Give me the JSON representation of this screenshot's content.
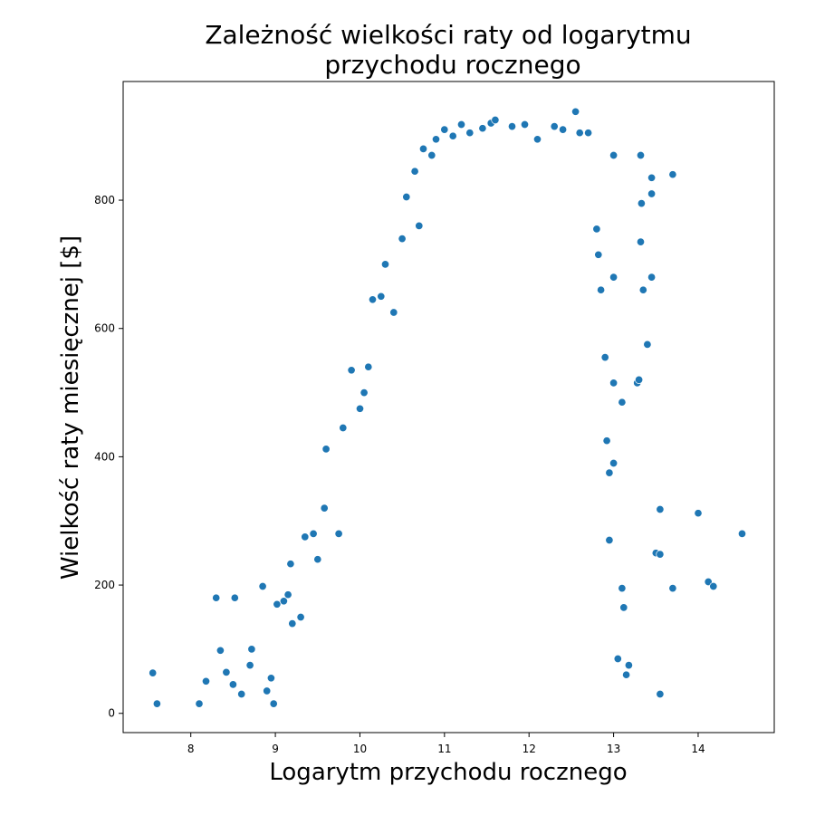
{
  "chart_data": {
    "type": "scatter",
    "title_lines": [
      "Zależność wielkości raty od logarytmu",
      "przychodu rocznego"
    ],
    "xlabel": "Logarytm przychodu rocznego",
    "ylabel": "Wielkość raty miesięcznej [$]",
    "xlim": [
      7.2,
      14.9
    ],
    "ylim": [
      -30,
      985
    ],
    "xticks": [
      8,
      9,
      10,
      11,
      12,
      13,
      14
    ],
    "yticks": [
      0,
      200,
      400,
      600,
      800
    ],
    "grid": false,
    "marker_color": "#1f77b4",
    "points": [
      [
        7.55,
        63
      ],
      [
        7.6,
        15
      ],
      [
        8.1,
        15
      ],
      [
        8.18,
        50
      ],
      [
        8.3,
        180
      ],
      [
        8.35,
        98
      ],
      [
        8.42,
        64
      ],
      [
        8.5,
        45
      ],
      [
        8.52,
        180
      ],
      [
        8.6,
        30
      ],
      [
        8.7,
        75
      ],
      [
        8.72,
        100
      ],
      [
        8.85,
        198
      ],
      [
        8.9,
        35
      ],
      [
        8.95,
        55
      ],
      [
        8.98,
        15
      ],
      [
        9.02,
        170
      ],
      [
        9.1,
        175
      ],
      [
        9.15,
        185
      ],
      [
        9.18,
        233
      ],
      [
        9.2,
        140
      ],
      [
        9.3,
        150
      ],
      [
        9.35,
        275
      ],
      [
        9.45,
        280
      ],
      [
        9.5,
        240
      ],
      [
        9.58,
        320
      ],
      [
        9.6,
        412
      ],
      [
        9.75,
        280
      ],
      [
        9.8,
        445
      ],
      [
        9.9,
        535
      ],
      [
        10.0,
        475
      ],
      [
        10.05,
        500
      ],
      [
        10.1,
        540
      ],
      [
        10.15,
        645
      ],
      [
        10.25,
        650
      ],
      [
        10.3,
        700
      ],
      [
        10.4,
        625
      ],
      [
        10.5,
        740
      ],
      [
        10.55,
        805
      ],
      [
        10.65,
        845
      ],
      [
        10.7,
        760
      ],
      [
        10.75,
        880
      ],
      [
        10.85,
        870
      ],
      [
        10.9,
        895
      ],
      [
        11.0,
        910
      ],
      [
        11.1,
        900
      ],
      [
        11.2,
        918
      ],
      [
        11.3,
        905
      ],
      [
        11.45,
        912
      ],
      [
        11.55,
        920
      ],
      [
        11.6,
        925
      ],
      [
        11.8,
        915
      ],
      [
        11.95,
        918
      ],
      [
        12.1,
        895
      ],
      [
        12.3,
        915
      ],
      [
        12.4,
        910
      ],
      [
        12.55,
        938
      ],
      [
        12.6,
        905
      ],
      [
        12.7,
        905
      ],
      [
        12.8,
        755
      ],
      [
        12.82,
        715
      ],
      [
        12.85,
        660
      ],
      [
        12.9,
        555
      ],
      [
        12.92,
        425
      ],
      [
        12.95,
        270
      ],
      [
        12.95,
        375
      ],
      [
        13.0,
        870
      ],
      [
        13.0,
        680
      ],
      [
        13.0,
        515
      ],
      [
        13.0,
        390
      ],
      [
        13.05,
        85
      ],
      [
        13.1,
        485
      ],
      [
        13.1,
        195
      ],
      [
        13.12,
        165
      ],
      [
        13.15,
        60
      ],
      [
        13.18,
        75
      ],
      [
        13.28,
        515
      ],
      [
        13.3,
        520
      ],
      [
        13.32,
        870
      ],
      [
        13.32,
        735
      ],
      [
        13.33,
        795
      ],
      [
        13.35,
        660
      ],
      [
        13.4,
        575
      ],
      [
        13.45,
        835
      ],
      [
        13.45,
        810
      ],
      [
        13.45,
        680
      ],
      [
        13.5,
        250
      ],
      [
        13.55,
        318
      ],
      [
        13.55,
        248
      ],
      [
        13.55,
        30
      ],
      [
        13.7,
        840
      ],
      [
        13.7,
        195
      ],
      [
        14.0,
        312
      ],
      [
        14.12,
        205
      ],
      [
        14.18,
        198
      ],
      [
        14.52,
        280
      ]
    ]
  }
}
